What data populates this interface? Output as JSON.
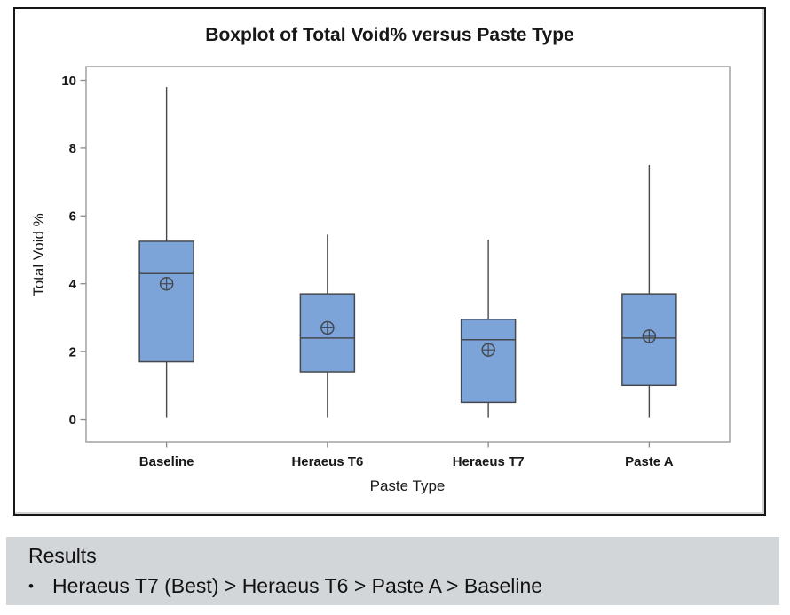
{
  "figure": {
    "title": "Boxplot of Total Void% versus Paste Type",
    "x_axis_label": "Paste Type",
    "y_axis_label": "Total Void %"
  },
  "chart_data": {
    "type": "boxplot",
    "title": "Boxplot of Total Void% versus Paste Type",
    "xlabel": "Paste Type",
    "ylabel": "Total Void %",
    "ylim": [
      0,
      10
    ],
    "yticks": [
      0,
      2,
      4,
      6,
      8,
      10
    ],
    "grid": false,
    "legend_position": "none",
    "mean_marker": "circle-plus",
    "categories": [
      "Baseline",
      "Heraeus T6",
      "Heraeus T7",
      "Paste A"
    ],
    "series": [
      {
        "name": "Baseline",
        "whisker_low": 0.05,
        "q1": 1.7,
        "median": 4.3,
        "q3": 5.25,
        "whisker_high": 9.8,
        "mean": 4.0
      },
      {
        "name": "Heraeus T6",
        "whisker_low": 0.05,
        "q1": 1.4,
        "median": 2.4,
        "q3": 3.7,
        "whisker_high": 5.45,
        "mean": 2.7
      },
      {
        "name": "Heraeus T7",
        "whisker_low": 0.05,
        "q1": 0.5,
        "median": 2.35,
        "q3": 2.95,
        "whisker_high": 5.3,
        "mean": 2.05
      },
      {
        "name": "Paste A",
        "whisker_low": 0.05,
        "q1": 1.0,
        "median": 2.4,
        "q3": 3.7,
        "whisker_high": 7.5,
        "mean": 2.45
      }
    ],
    "colors": {
      "box_fill": "#7da4d9",
      "box_border": "#45494e",
      "whisker": "#45494e",
      "plot_border": "#9b9b9b",
      "tick": "#8a8a8a",
      "text": "#171717",
      "figure_border": "#161616",
      "results_panel_bg": "#d2d6d9"
    }
  },
  "results": {
    "heading": "Results",
    "bullet_glyph": "•",
    "bullets": [
      "Heraeus T7 (Best) > Heraeus T6 > Paste A > Baseline"
    ]
  }
}
